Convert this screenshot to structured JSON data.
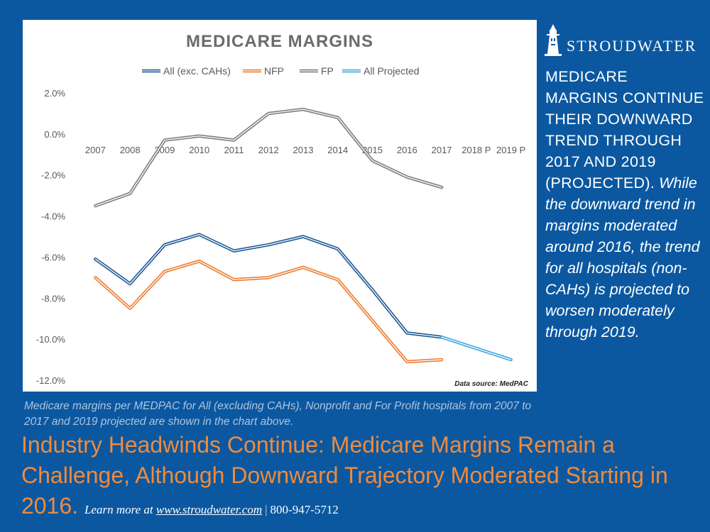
{
  "brand": {
    "name": "STROUDWATER",
    "logo_icon": "lighthouse-icon"
  },
  "side_panel": {
    "heading": "MEDICARE MARGINS CONTINUE THEIR DOWNWARD TREND THROUGH 2017 AND 2019 (PROJECTED).",
    "body": "While the downward trend in margins moderated around 2016, the trend for all hospitals (non-CAHs) is projected to worsen moderately through 2019."
  },
  "caption": "Medicare margins per MEDPAC for All (excluding CAHs), Nonprofit and For Profit hospitals from 2007 to 2017 and 2019 projected are shown in the chart above.",
  "headline": "Industry Headwinds Continue: Medicare Margins Remain a Challenge, Although Downward Trajectory Moderated Starting in 2016.",
  "footer": {
    "learn_more": "Learn more at",
    "url": "www.stroudwater.com",
    "separator": "|",
    "phone": "800-947-5712"
  },
  "chart_data": {
    "type": "line",
    "title": "MEDICARE MARGINS",
    "source_note": "Data source: MedPAC",
    "categories": [
      "2007",
      "2008",
      "2009",
      "2010",
      "2011",
      "2012",
      "2013",
      "2014",
      "2015",
      "2016",
      "2017",
      "2018 P",
      "2019 P"
    ],
    "ylim": [
      -12,
      2
    ],
    "yticks": [
      2,
      0,
      -2,
      -4,
      -6,
      -8,
      -10,
      -12
    ],
    "ytick_labels": [
      "2.0%",
      "0.0%",
      "-2.0%",
      "-4.0%",
      "-6.0%",
      "-8.0%",
      "-10.0%",
      "-12.0%"
    ],
    "legend_position": "top",
    "grid": false,
    "series": [
      {
        "name": "All (exc. CAHs)",
        "color": "#1f5a96",
        "values": [
          -6.1,
          -7.3,
          -5.4,
          -4.9,
          -5.7,
          -5.4,
          -5.0,
          -5.6,
          -7.6,
          -9.7,
          -9.9,
          null,
          null
        ]
      },
      {
        "name": "NFP",
        "color": "#ed7d31",
        "values": [
          -7.0,
          -8.5,
          -6.7,
          -6.2,
          -7.1,
          -7.0,
          -6.5,
          -7.1,
          -9.1,
          -11.1,
          -11.0,
          null,
          null
        ]
      },
      {
        "name": "FP",
        "color": "#7f7f7f",
        "values": [
          -3.5,
          -2.9,
          -0.3,
          -0.1,
          -0.3,
          1.0,
          1.2,
          0.8,
          -1.3,
          -2.1,
          -2.6,
          null,
          null
        ]
      },
      {
        "name": "All Projected",
        "color": "#41a6dc",
        "values": [
          null,
          null,
          null,
          null,
          null,
          null,
          null,
          null,
          null,
          null,
          -9.9,
          -10.45,
          -11.0
        ]
      }
    ]
  }
}
